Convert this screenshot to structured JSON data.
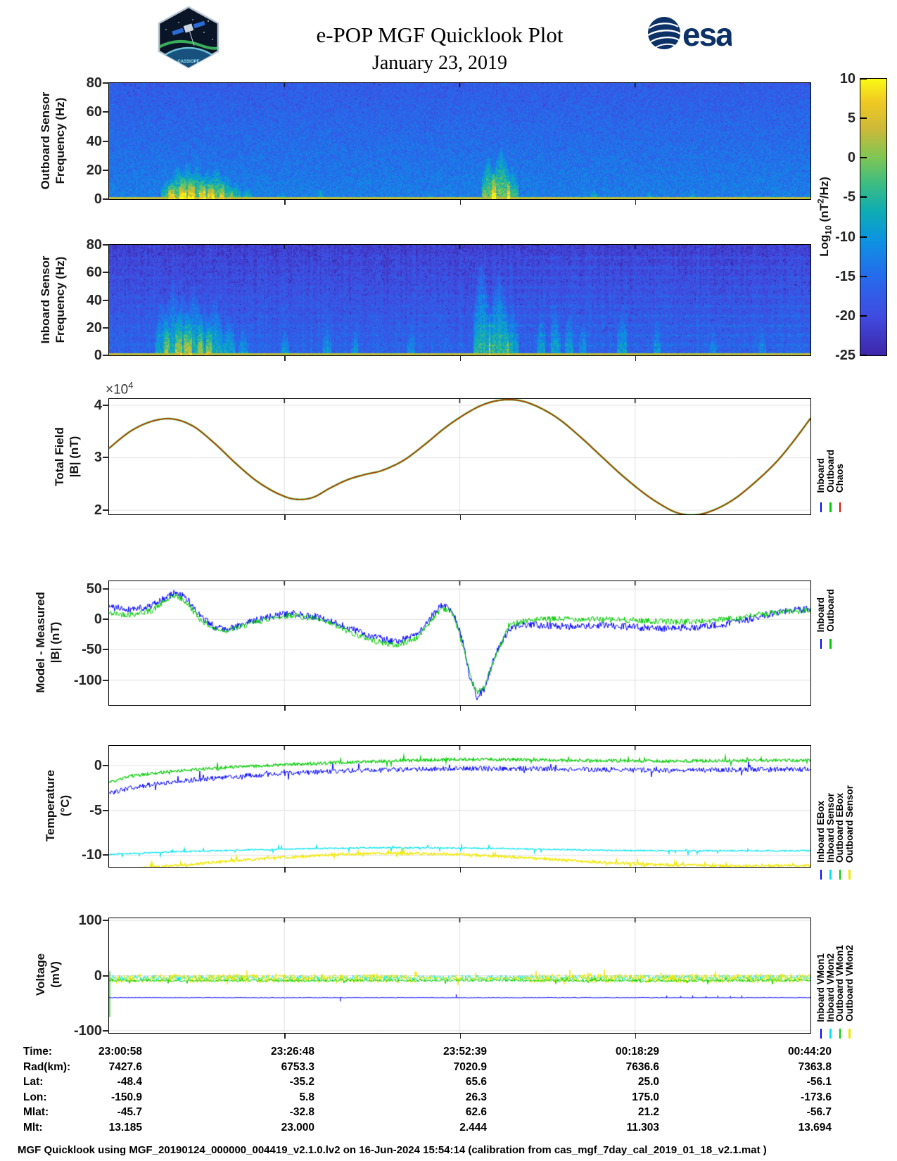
{
  "header": {
    "title": "e-POP MGF Quicklook Plot",
    "date": "January 23, 2019",
    "esa_text": "esa",
    "patch_text": "CASSIOPE"
  },
  "colorbar": {
    "ticks": [
      "10",
      "5",
      "0",
      "-5",
      "-10",
      "-15",
      "-20",
      "-25"
    ],
    "clim": [
      -25,
      10
    ],
    "label": {
      "prefix": "Log",
      "sub": "10",
      "mid": " (nT",
      "sup": "2",
      "suffix": "/Hz)"
    }
  },
  "panels": [
    {
      "ylabel1": "Outboard Sensor",
      "ylabel2": "Frequency (Hz)"
    },
    {
      "ylabel1": "Inboard Sensor",
      "ylabel2": "Frequency (Hz)"
    },
    {
      "ylabel1": "Total Field",
      "ylabel2": "|B| (nT)",
      "exponent": {
        "prefix": "×10",
        "sup": "4"
      },
      "legend": [
        {
          "label": "Inboard",
          "color": "#0000ff"
        },
        {
          "label": "Outboard",
          "color": "#00cc00"
        },
        {
          "label": "Chaos",
          "color": "#dd1100"
        }
      ]
    },
    {
      "ylabel1": "Model - Measured",
      "ylabel2": "|B| (nT)",
      "legend": [
        {
          "label": "Inboard",
          "color": "#0000ff"
        },
        {
          "label": "Outboard",
          "color": "#00cc00"
        }
      ]
    },
    {
      "ylabel1": "Temperature",
      "ylabel2": "(°C)",
      "legend": [
        {
          "label": "Inboard EBox",
          "color": "#0000ff"
        },
        {
          "label": "Inboard Sensor",
          "color": "#00e5ee"
        },
        {
          "label": "Outboard EBox",
          "color": "#00cc00"
        },
        {
          "label": "Outboard Sensor",
          "color": "#f0e800"
        }
      ]
    },
    {
      "ylabel1": "Voltage",
      "ylabel2": "(mV)",
      "legend": [
        {
          "label": "Inboard VMon1",
          "color": "#0000ff"
        },
        {
          "label": "Inboard VMon2",
          "color": "#00e5ee"
        },
        {
          "label": "Outboard VMon1",
          "color": "#00cc00"
        },
        {
          "label": "Outboard VMon2",
          "color": "#f0e800"
        }
      ]
    }
  ],
  "table": {
    "row_labels": [
      "Time:",
      "Rad(km):",
      "Lat:",
      "Lon:",
      "Mlat:",
      "Mlt:"
    ],
    "columns": [
      [
        "23:00:58",
        "7427.6",
        "-48.4",
        "-150.9",
        "-45.7",
        "13.185"
      ],
      [
        "23:26:48",
        "6753.3",
        "-35.2",
        "5.8",
        "-32.8",
        "23.000"
      ],
      [
        "23:52:39",
        "7020.9",
        "65.6",
        "26.3",
        "62.6",
        "2.444"
      ],
      [
        "00:18:29",
        "7636.6",
        "25.0",
        "175.0",
        "21.2",
        "11.303"
      ],
      [
        "00:44:20",
        "7363.8",
        "-56.1",
        "-173.6",
        "-56.7",
        "13.694"
      ]
    ]
  },
  "footer": "MGF Quicklook using MGF_20190124_000000_004419_v2.1.0.lv2 on 16-Jun-2024 15:54:14 (calibration from cas_mgf_7day_cal_2019_01_18_v2.1.mat )",
  "chart_data": [
    {
      "id": "p1",
      "name": "Outboard Sensor Spectrogram",
      "type": "heatmap",
      "ylabel": "Outboard Sensor Frequency (Hz)",
      "ylim": [
        0,
        80
      ],
      "yticks": [
        0,
        20,
        40,
        60,
        80
      ],
      "clim": [
        -25,
        10
      ],
      "colormap": "parula",
      "seed": 7,
      "base": {
        "top": -17.2,
        "bottom": -12.6,
        "noise": 2.3
      },
      "bottom_stripe": {
        "height_hz": 1.6,
        "value": 2.6
      },
      "events": [
        {
          "t": 0.083,
          "w": 0.01,
          "h": 0.2,
          "a": 10
        },
        {
          "t": 0.097,
          "w": 0.013,
          "h": 0.3,
          "a": 13
        },
        {
          "t": 0.11,
          "w": 0.011,
          "h": 0.34,
          "a": 12
        },
        {
          "t": 0.124,
          "w": 0.013,
          "h": 0.3,
          "a": 13
        },
        {
          "t": 0.138,
          "w": 0.011,
          "h": 0.26,
          "a": 11
        },
        {
          "t": 0.152,
          "w": 0.012,
          "h": 0.3,
          "a": 12
        },
        {
          "t": 0.166,
          "w": 0.01,
          "h": 0.22,
          "a": 10
        },
        {
          "t": 0.18,
          "w": 0.008,
          "h": 0.16,
          "a": 9
        },
        {
          "t": 0.196,
          "w": 0.007,
          "h": 0.12,
          "a": 8
        },
        {
          "t": 0.245,
          "w": 0.005,
          "h": 0.08,
          "a": 7
        },
        {
          "t": 0.3,
          "w": 0.005,
          "h": 0.1,
          "a": 7
        },
        {
          "t": 0.455,
          "w": 0.004,
          "h": 0.07,
          "a": 6
        },
        {
          "t": 0.54,
          "w": 0.01,
          "h": 0.4,
          "a": 13
        },
        {
          "t": 0.558,
          "w": 0.013,
          "h": 0.46,
          "a": 14
        },
        {
          "t": 0.575,
          "w": 0.008,
          "h": 0.3,
          "a": 11
        },
        {
          "t": 0.69,
          "w": 0.005,
          "h": 0.1,
          "a": 7
        },
        {
          "t": 0.77,
          "w": 0.004,
          "h": 0.08,
          "a": 6
        },
        {
          "t": 0.83,
          "w": 0.005,
          "h": 0.09,
          "a": 7
        },
        {
          "t": 0.905,
          "w": 0.004,
          "h": 0.07,
          "a": 6
        }
      ]
    },
    {
      "id": "p2",
      "name": "Inboard Sensor Spectrogram",
      "type": "heatmap",
      "ylabel": "Inboard Sensor Frequency (Hz)",
      "ylim": [
        0,
        80
      ],
      "yticks": [
        0,
        20,
        40,
        60,
        80
      ],
      "clim": [
        -25,
        10
      ],
      "colormap": "parula",
      "seed": 8,
      "column_noise": 1.1,
      "base": {
        "top": -21.5,
        "bottom": -16.0,
        "noise": 2.1
      },
      "bands": {
        "freqs": [
          8,
          15,
          22,
          29,
          36,
          43,
          50,
          57,
          64,
          71
        ],
        "gain": 1.6,
        "right_gain": 3.0,
        "right_start": 0.52
      },
      "bottom_stripe": {
        "height_hz": 2.0,
        "value": 2.6
      },
      "events": [
        {
          "t": 0.075,
          "w": 0.01,
          "h": 0.55,
          "a": 9
        },
        {
          "t": 0.09,
          "w": 0.013,
          "h": 0.7,
          "a": 10
        },
        {
          "t": 0.105,
          "w": 0.012,
          "h": 0.6,
          "a": 10
        },
        {
          "t": 0.12,
          "w": 0.014,
          "h": 0.65,
          "a": 11
        },
        {
          "t": 0.135,
          "w": 0.01,
          "h": 0.5,
          "a": 9
        },
        {
          "t": 0.15,
          "w": 0.012,
          "h": 0.55,
          "a": 10
        },
        {
          "t": 0.17,
          "w": 0.009,
          "h": 0.4,
          "a": 9
        },
        {
          "t": 0.19,
          "w": 0.007,
          "h": 0.3,
          "a": 8
        },
        {
          "t": 0.25,
          "w": 0.006,
          "h": 0.25,
          "a": 7
        },
        {
          "t": 0.31,
          "w": 0.006,
          "h": 0.3,
          "a": 7
        },
        {
          "t": 0.35,
          "w": 0.005,
          "h": 0.25,
          "a": 7
        },
        {
          "t": 0.43,
          "w": 0.005,
          "h": 0.3,
          "a": 7
        },
        {
          "t": 0.53,
          "w": 0.012,
          "h": 0.9,
          "a": 11
        },
        {
          "t": 0.555,
          "w": 0.014,
          "h": 0.8,
          "a": 12
        },
        {
          "t": 0.575,
          "w": 0.008,
          "h": 0.5,
          "a": 9
        },
        {
          "t": 0.615,
          "w": 0.006,
          "h": 0.45,
          "a": 8
        },
        {
          "t": 0.635,
          "w": 0.007,
          "h": 0.5,
          "a": 8
        },
        {
          "t": 0.655,
          "w": 0.006,
          "h": 0.45,
          "a": 8
        },
        {
          "t": 0.675,
          "w": 0.005,
          "h": 0.4,
          "a": 7
        },
        {
          "t": 0.73,
          "w": 0.007,
          "h": 0.5,
          "a": 8
        },
        {
          "t": 0.78,
          "w": 0.005,
          "h": 0.35,
          "a": 7
        },
        {
          "t": 0.86,
          "w": 0.005,
          "h": 0.3,
          "a": 6
        },
        {
          "t": 0.93,
          "w": 0.005,
          "h": 0.3,
          "a": 6
        }
      ]
    },
    {
      "id": "p3",
      "name": "Total Field",
      "type": "line",
      "ylabel": "Total Field |B| (nT)",
      "y_scale": "1e4 nT",
      "ylim": [
        1.92,
        4.12
      ],
      "yticks": [
        2,
        3,
        4
      ],
      "x_shared": [
        0,
        0.03,
        0.06,
        0.09,
        0.12,
        0.15,
        0.18,
        0.21,
        0.24,
        0.265,
        0.29,
        0.315,
        0.34,
        0.365,
        0.39,
        0.42,
        0.45,
        0.48,
        0.51,
        0.535,
        0.56,
        0.585,
        0.61,
        0.64,
        0.67,
        0.7,
        0.73,
        0.76,
        0.785,
        0.81,
        0.835,
        0.86,
        0.89,
        0.92,
        0.95,
        0.975,
        1
      ],
      "y_shared": [
        3.18,
        3.5,
        3.69,
        3.74,
        3.6,
        3.28,
        2.9,
        2.56,
        2.32,
        2.21,
        2.24,
        2.42,
        2.58,
        2.68,
        2.76,
        2.95,
        3.25,
        3.58,
        3.85,
        4.02,
        4.1,
        4.09,
        3.98,
        3.75,
        3.42,
        3.05,
        2.68,
        2.35,
        2.12,
        1.95,
        1.91,
        1.99,
        2.2,
        2.52,
        2.9,
        3.3,
        3.75
      ],
      "series": [
        {
          "name": "Inboard",
          "color": "#0000ff",
          "lw": 1,
          "smooth": true
        },
        {
          "name": "Outboard",
          "color": "#00cc00",
          "lw": 2.4,
          "smooth": true
        },
        {
          "name": "Chaos",
          "color": "#dd1100",
          "lw": 1.4,
          "smooth": true
        }
      ]
    },
    {
      "id": "p4",
      "name": "Model - Measured",
      "type": "line",
      "ylabel": "Model - Measured |B| (nT)",
      "ylim": [
        -141,
        63
      ],
      "yticks": [
        -100,
        -50,
        0,
        50
      ],
      "series": [
        {
          "name": "Inboard",
          "color": "#0000ff",
          "lw": 1,
          "jitter": 6,
          "seed": 41,
          "x": [
            0,
            0.03,
            0.06,
            0.08,
            0.095,
            0.11,
            0.13,
            0.15,
            0.17,
            0.2,
            0.23,
            0.26,
            0.29,
            0.32,
            0.35,
            0.38,
            0.41,
            0.44,
            0.46,
            0.475,
            0.49,
            0.505,
            0.515,
            0.525,
            0.535,
            0.55,
            0.57,
            0.59,
            0.62,
            0.66,
            0.7,
            0.74,
            0.78,
            0.82,
            0.86,
            0.9,
            0.94,
            0.97,
            1
          ],
          "y": [
            20,
            17,
            22,
            35,
            45,
            35,
            5,
            -12,
            -15,
            -5,
            5,
            10,
            6,
            -5,
            -18,
            -30,
            -37,
            -25,
            5,
            25,
            15,
            -40,
            -100,
            -128,
            -115,
            -60,
            -15,
            -8,
            -10,
            -12,
            -10,
            -12,
            -15,
            -14,
            -10,
            -3,
            8,
            14,
            18
          ]
        },
        {
          "name": "Outboard",
          "color": "#00cc00",
          "lw": 1,
          "jitter": 5,
          "seed": 42,
          "x": [
            0,
            0.03,
            0.06,
            0.08,
            0.095,
            0.11,
            0.13,
            0.15,
            0.17,
            0.2,
            0.23,
            0.26,
            0.29,
            0.32,
            0.35,
            0.38,
            0.41,
            0.44,
            0.46,
            0.475,
            0.49,
            0.505,
            0.515,
            0.525,
            0.535,
            0.55,
            0.57,
            0.59,
            0.62,
            0.66,
            0.7,
            0.74,
            0.78,
            0.82,
            0.86,
            0.9,
            0.94,
            0.97,
            1
          ],
          "y": [
            10,
            8,
            14,
            30,
            40,
            28,
            0,
            -16,
            -18,
            -8,
            2,
            7,
            2,
            -9,
            -24,
            -36,
            -43,
            -30,
            0,
            20,
            10,
            -45,
            -95,
            -122,
            -110,
            -65,
            -10,
            -2,
            0,
            1,
            0,
            -1,
            -3,
            -4,
            -2,
            3,
            10,
            13,
            15
          ]
        }
      ]
    },
    {
      "id": "p5",
      "name": "Temperature",
      "type": "line",
      "ylabel": "Temperature (°C)",
      "ylim": [
        -11.3,
        2.2
      ],
      "yticks": [
        -10,
        -5,
        0
      ],
      "series": [
        {
          "name": "Inboard EBox",
          "color": "#0000ff",
          "lw": 1,
          "jitter": 0.28,
          "spike_p": 0.05,
          "spike_amp": 0.7,
          "seed": 31,
          "x": [
            0,
            0.03,
            0.07,
            0.12,
            0.18,
            0.25,
            0.33,
            0.42,
            0.5,
            0.6,
            0.7,
            0.8,
            0.9,
            1
          ],
          "y": [
            -3.1,
            -2.5,
            -2.0,
            -1.6,
            -1.2,
            -0.9,
            -0.6,
            -0.45,
            -0.35,
            -0.35,
            -0.45,
            -0.55,
            -0.45,
            -0.4
          ]
        },
        {
          "name": "Outboard EBox",
          "color": "#00cc00",
          "lw": 1.2,
          "jitter": 0.16,
          "spike_p": 0.03,
          "spike_amp": 0.5,
          "seed": 33,
          "x": [
            0,
            0.03,
            0.07,
            0.12,
            0.18,
            0.25,
            0.33,
            0.42,
            0.5,
            0.6,
            0.7,
            0.8,
            0.9,
            1
          ],
          "y": [
            -1.9,
            -1.2,
            -0.8,
            -0.45,
            -0.15,
            0.1,
            0.35,
            0.55,
            0.7,
            0.65,
            0.55,
            0.5,
            0.55,
            0.6
          ]
        },
        {
          "name": "Inboard Sensor",
          "color": "#00e5ee",
          "lw": 1.2,
          "jitter": 0.07,
          "spike_p": 0.04,
          "spike_amp": 0.4,
          "seed": 32,
          "x": [
            0,
            0.1,
            0.2,
            0.3,
            0.4,
            0.5,
            0.6,
            0.7,
            0.8,
            0.9,
            1
          ],
          "y": [
            -9.9,
            -9.6,
            -9.4,
            -9.25,
            -9.15,
            -9.2,
            -9.3,
            -9.45,
            -9.5,
            -9.5,
            -9.5
          ]
        },
        {
          "name": "Outboard Sensor",
          "color": "#f0e800",
          "lw": 1.4,
          "jitter": 0.14,
          "spike_p": 0.04,
          "spike_amp": 0.5,
          "seed": 34,
          "x": [
            0,
            0.1,
            0.2,
            0.3,
            0.4,
            0.5,
            0.6,
            0.7,
            0.8,
            0.9,
            1
          ],
          "y": [
            -11.7,
            -11.1,
            -10.5,
            -10.0,
            -9.75,
            -9.9,
            -10.3,
            -10.8,
            -11.1,
            -11.2,
            -11.15
          ]
        }
      ]
    },
    {
      "id": "p6",
      "name": "Voltage",
      "type": "line",
      "ylabel": "Voltage (mV)",
      "ylim": [
        -104,
        104
      ],
      "yticks": [
        -100,
        0,
        100
      ],
      "series": [
        {
          "name": "Inboard VMon2",
          "color": "#00e5ee",
          "lw": 1,
          "jitter": 5,
          "seed": 21,
          "x": [
            0,
            1
          ],
          "y": [
            -4,
            -4
          ]
        },
        {
          "name": "Outboard VMon2",
          "color": "#f0e800",
          "lw": 1,
          "jitter": 8.5,
          "spike_p": 0.06,
          "spike_amp": 10,
          "quiet": [
            0.44,
            0.6,
            0.4
          ],
          "seed": 22,
          "x": [
            0,
            1
          ],
          "y": [
            -5,
            -5
          ]
        },
        {
          "name": "Outboard VMon1",
          "color": "#00cc00",
          "lw": 1,
          "jitter": 2.2,
          "spike_p": 0.04,
          "spike_amp": 5,
          "seed": 23,
          "x": [
            0,
            1
          ],
          "y": [
            -9,
            -9
          ],
          "blips": [
            {
              "t": 0.001,
              "v1": 8,
              "v2": -75
            }
          ]
        },
        {
          "name": "Inboard VMon1",
          "color": "#0000ff",
          "lw": 1,
          "jitter": 0.5,
          "seed": 24,
          "x": [
            0,
            1
          ],
          "y": [
            -40,
            -40
          ],
          "blips": [
            {
              "t": 0.33,
              "v1": -40,
              "v2": -47
            },
            {
              "t": 0.495,
              "v1": -40,
              "v2": -34
            },
            {
              "t": 0.795,
              "v1": -40,
              "v2": -36.5
            },
            {
              "t": 0.815,
              "v1": -40,
              "v2": -37
            },
            {
              "t": 0.832,
              "v1": -40,
              "v2": -36
            },
            {
              "t": 0.851,
              "v1": -40,
              "v2": -37
            },
            {
              "t": 0.868,
              "v1": -40,
              "v2": -36.5
            },
            {
              "t": 0.886,
              "v1": -40,
              "v2": -37
            },
            {
              "t": 0.902,
              "v1": -40,
              "v2": -36
            }
          ]
        }
      ]
    }
  ]
}
